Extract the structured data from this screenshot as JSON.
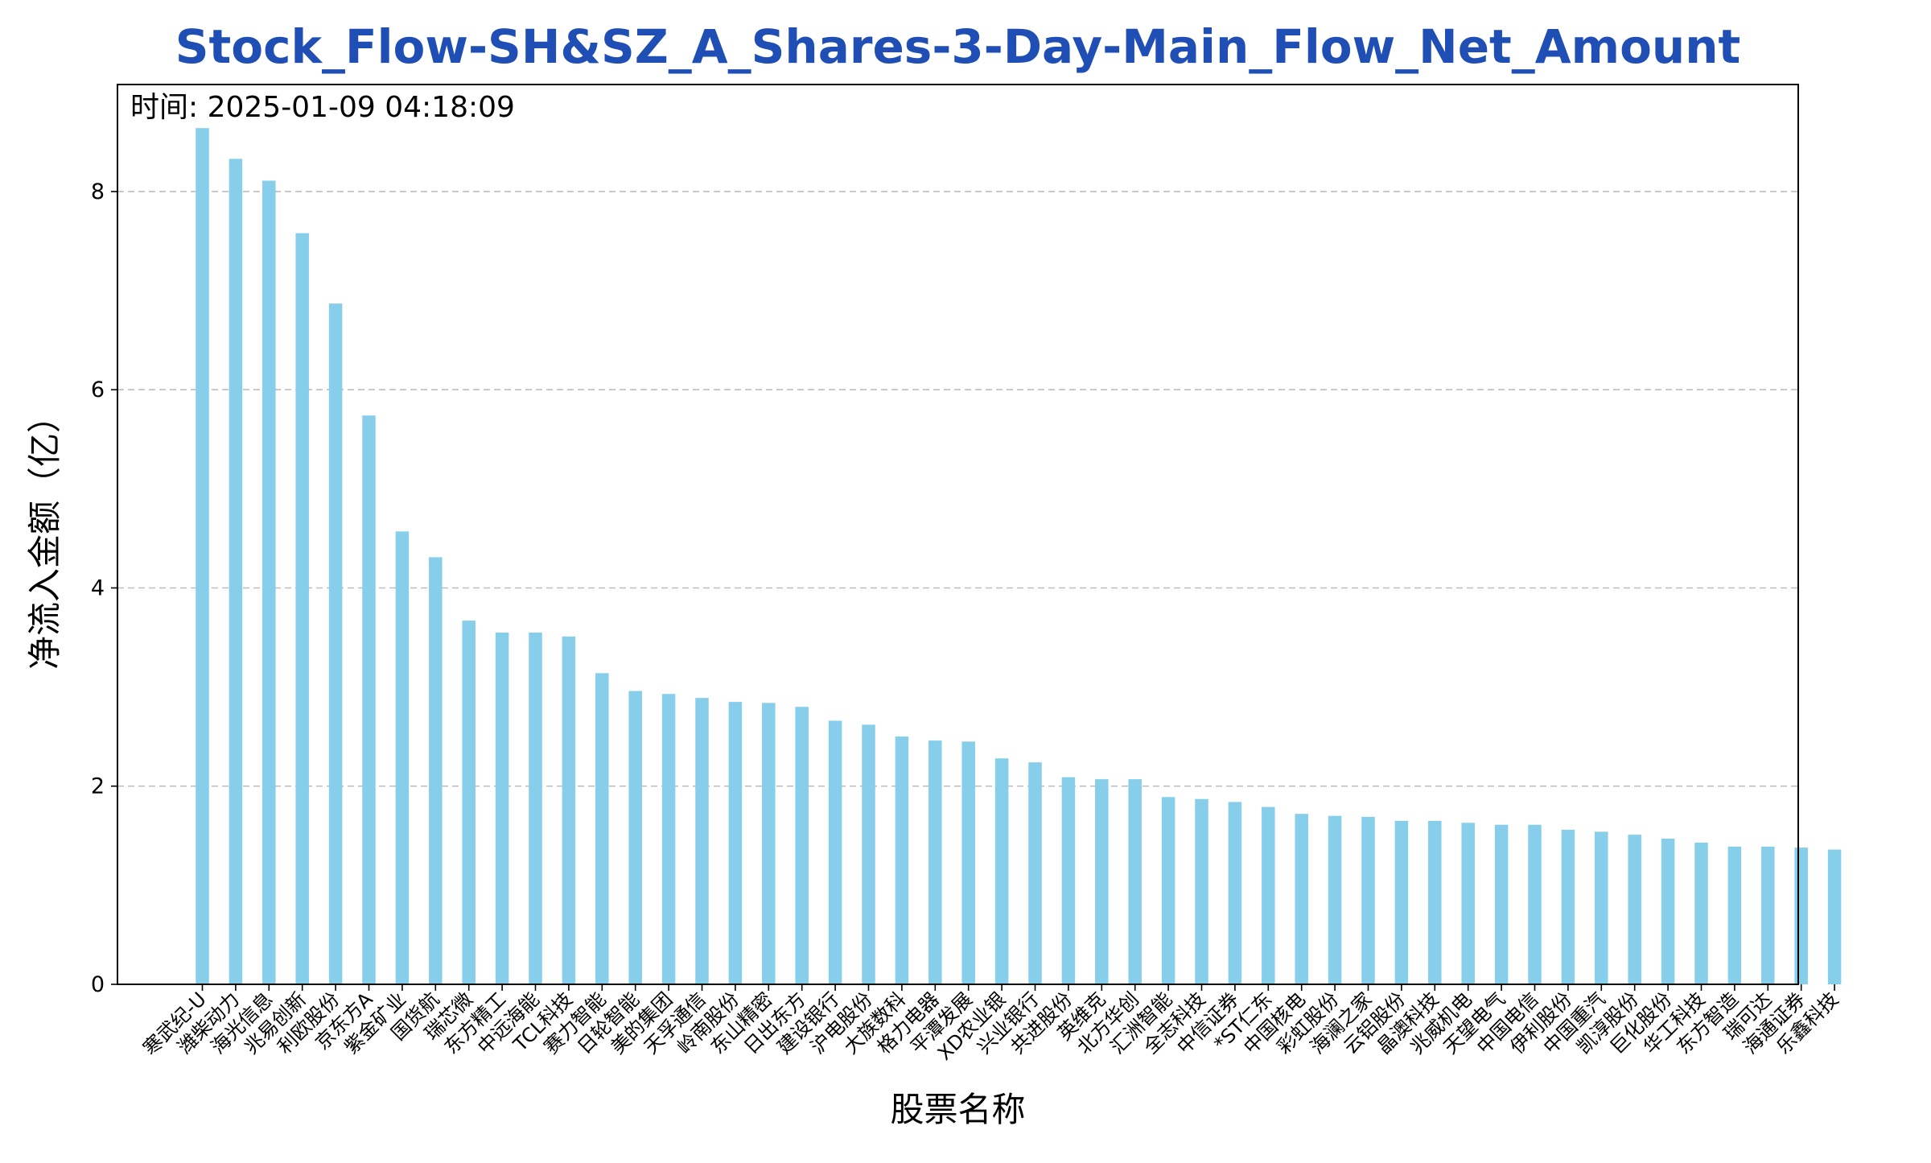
{
  "chart_data": {
    "type": "bar",
    "title": "Stock_Flow-SH&SZ_A_Shares-3-Day-Main_Flow_Net_Amount",
    "annotation": "时间: 2025-01-09 04:18:09",
    "xlabel": "股票名称",
    "ylabel": "净流入金额（亿）",
    "ylim": [
      0,
      9.08
    ],
    "yticks": [
      0,
      2,
      4,
      6,
      8
    ],
    "grid": "y-dashed",
    "bar_color": "#87ceeb",
    "title_color": "#1f4eb4",
    "categories": [
      "寒武纪-U",
      "潍柴动力",
      "海光信息",
      "兆易创新",
      "利欧股份",
      "京东方A",
      "紫金矿业",
      "国货航",
      "瑞芯微",
      "东方精工",
      "中远海能",
      "TCL科技",
      "赛力智能",
      "日轮智能",
      "美的集团",
      "天孚通信",
      "岭南股份",
      "东山精密",
      "日出东方",
      "建设银行",
      "沪电股份",
      "大族数科",
      "格力电器",
      "平潭发展",
      "XD农业银",
      "兴业银行",
      "共进股份",
      "英维克",
      "北方华创",
      "汇洲智能",
      "全志科技",
      "中信证券",
      "*ST仁东",
      "中国核电",
      "彩虹股份",
      "海澜之家",
      "云铝股份",
      "晶澳科技",
      "兆威机电",
      "天望电气",
      "中国电信",
      "伊利股份",
      "中国重汽",
      "凯淳股份",
      "巨化股份",
      "华工科技",
      "东方智造",
      "瑞可达",
      "海通证券",
      "乐鑫科技"
    ],
    "values": [
      8.64,
      8.33,
      8.11,
      7.58,
      6.87,
      5.74,
      4.57,
      4.31,
      3.67,
      3.55,
      3.55,
      3.51,
      3.14,
      2.96,
      2.93,
      2.89,
      2.85,
      2.84,
      2.8,
      2.66,
      2.62,
      2.5,
      2.46,
      2.45,
      2.28,
      2.24,
      2.09,
      2.07,
      2.07,
      1.89,
      1.87,
      1.84,
      1.79,
      1.72,
      1.7,
      1.69,
      1.65,
      1.65,
      1.63,
      1.61,
      1.61,
      1.56,
      1.54,
      1.51,
      1.47,
      1.43,
      1.39,
      1.39,
      1.38,
      1.36
    ]
  }
}
